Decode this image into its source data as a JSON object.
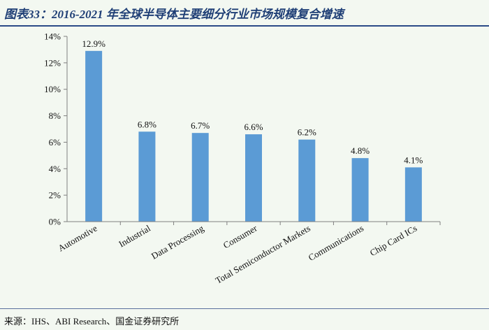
{
  "header": {
    "title": "图表33：2016-2021 年全球半导体主要细分行业市场规模复合增速"
  },
  "footer": {
    "source": "来源：IHS、ABI Research、国金证券研究所"
  },
  "chart_data": {
    "type": "bar",
    "categories": [
      "Automotive",
      "Industrial",
      "Data Processing",
      "Consumer",
      "Total Semiconductor Markets",
      "Communications",
      "Chip Card ICs"
    ],
    "series": [
      {
        "values": [
          12.9,
          6.8,
          6.7,
          6.6,
          6.2,
          4.8,
          4.1
        ],
        "data_labels": [
          "12.9%",
          "6.8%",
          "6.7%",
          "6.6%",
          "6.2%",
          "4.8%",
          "4.1%"
        ]
      }
    ],
    "ylim": [
      0,
      14
    ],
    "yticks": [
      0,
      2,
      4,
      6,
      8,
      10,
      12,
      14
    ],
    "ytick_labels": [
      "0%",
      "2%",
      "4%",
      "6%",
      "8%",
      "10%",
      "12%",
      "14%"
    ],
    "grid": false,
    "legend": "none",
    "bar_color": "#5b9bd5"
  }
}
